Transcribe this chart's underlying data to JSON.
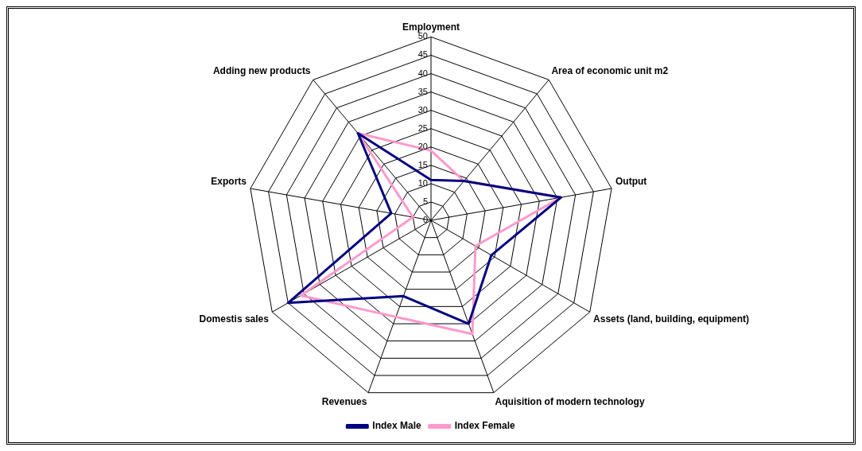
{
  "chart_data": {
    "type": "radar",
    "categories": [
      "Employment",
      "Area of economic unit m2",
      "Output",
      "Assets (land, building, equipment)",
      "Aquisition of modern technology",
      "Revenues",
      "Domestis sales",
      "Exports",
      "Adding new products"
    ],
    "series": [
      {
        "name": "Index Male",
        "color": "#000080",
        "values": [
          11,
          14,
          36,
          19,
          30,
          22,
          45,
          11,
          31
        ]
      },
      {
        "name": "Index Female",
        "color": "#ff99cc",
        "values": [
          19,
          14,
          36,
          14,
          33,
          28,
          41,
          5,
          31
        ]
      }
    ],
    "ylim": [
      0,
      50
    ],
    "yticks": [
      0,
      5,
      10,
      15,
      20,
      25,
      30,
      35,
      40,
      45,
      50
    ],
    "grid": true,
    "legend": "bottom",
    "marker": "none",
    "line_style": "solid"
  }
}
